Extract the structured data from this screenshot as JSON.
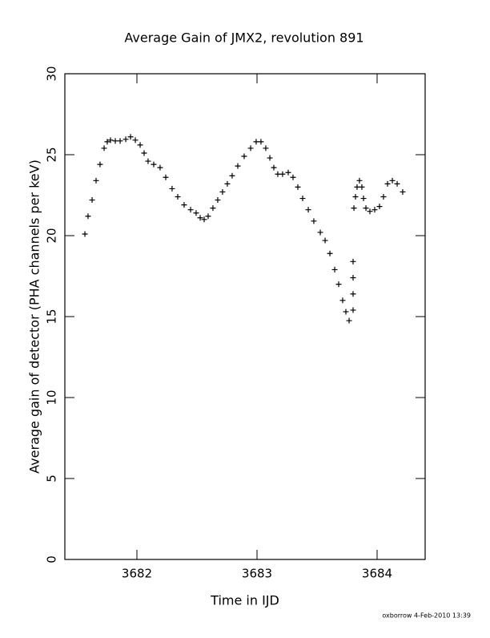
{
  "chart_data": {
    "type": "scatter",
    "title": "Average Gain of JMX2, revolution 891",
    "x_label": "Time in IJD",
    "y_label": "Average gain of detector (PHA channels per keV)",
    "footer": "oxborrow   4-Feb-2010 13:39",
    "xlim": [
      3681.4,
      3684.4
    ],
    "xticks": [
      3682,
      3683,
      3684
    ],
    "ylim": [
      0,
      30
    ],
    "yticks": [
      0,
      5,
      10,
      15,
      20,
      25,
      30
    ],
    "color": "#000000",
    "marker": "+",
    "x": [
      3681.567,
      3681.593,
      3681.627,
      3681.66,
      3681.693,
      3681.727,
      3681.753,
      3681.78,
      3681.82,
      3681.86,
      3681.907,
      3681.947,
      3681.987,
      3682.027,
      3682.06,
      3682.093,
      3682.14,
      3682.193,
      3682.24,
      3682.293,
      3682.34,
      3682.393,
      3682.447,
      3682.493,
      3682.527,
      3682.56,
      3682.593,
      3682.633,
      3682.673,
      3682.713,
      3682.753,
      3682.793,
      3682.84,
      3682.893,
      3682.947,
      3682.993,
      3683.033,
      3683.073,
      3683.107,
      3683.14,
      3683.173,
      3683.213,
      3683.26,
      3683.3,
      3683.34,
      3683.38,
      3683.427,
      3683.473,
      3683.527,
      3683.567,
      3683.607,
      3683.647,
      3683.68,
      3683.713,
      3683.74,
      3683.767,
      3683.8,
      3683.8,
      3683.8,
      3683.8,
      3683.807,
      3683.82,
      3683.833,
      3683.853,
      3683.873,
      3683.887,
      3683.907,
      3683.94,
      3683.98,
      3684.02,
      3684.053,
      3684.087,
      3684.127,
      3684.167,
      3684.213
    ],
    "values": [
      20.1,
      21.2,
      22.2,
      23.4,
      24.4,
      25.4,
      25.8,
      25.9,
      25.85,
      25.85,
      25.95,
      26.1,
      25.9,
      25.6,
      25.1,
      24.6,
      24.4,
      24.2,
      23.6,
      22.9,
      22.4,
      21.9,
      21.6,
      21.4,
      21.1,
      21.0,
      21.2,
      21.7,
      22.2,
      22.7,
      23.2,
      23.7,
      24.3,
      24.9,
      25.4,
      25.8,
      25.8,
      25.4,
      24.8,
      24.2,
      23.8,
      23.8,
      23.9,
      23.6,
      23.0,
      22.3,
      21.6,
      20.9,
      20.2,
      19.7,
      18.9,
      17.9,
      17.0,
      16.0,
      15.3,
      14.75,
      18.4,
      17.4,
      16.4,
      15.4,
      21.7,
      22.4,
      23.0,
      23.4,
      23.0,
      22.3,
      21.7,
      21.5,
      21.6,
      21.8,
      22.4,
      23.2,
      23.4,
      23.2,
      22.7
    ]
  }
}
